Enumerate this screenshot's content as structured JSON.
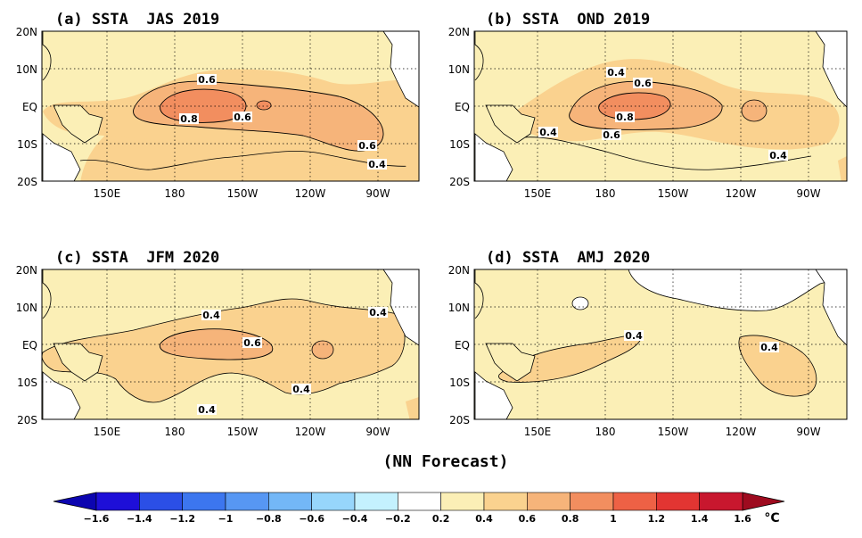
{
  "figure_caption": "(NN Forecast)",
  "colorbar": {
    "unit": "°C",
    "ticks": [
      "-1.6",
      "-1.4",
      "-1.2",
      "-1",
      "-0.8",
      "-0.6",
      "-0.4",
      "-0.2",
      "0.2",
      "0.4",
      "0.6",
      "0.8",
      "1",
      "1.2",
      "1.4",
      "1.6"
    ],
    "colors": [
      "#1e0fd8",
      "#2b4fe6",
      "#3c76ef",
      "#5797f3",
      "#73b7f7",
      "#97d6fb",
      "#c4f1fe",
      "#ffffff",
      "#fbefb6",
      "#fad28f",
      "#f6b47a",
      "#f28e5f",
      "#ee6145",
      "#e23532",
      "#c8172e"
    ],
    "end_low": "#0c05b0",
    "end_high": "#9e0b1f"
  },
  "axes": {
    "lat_labels": [
      "20N",
      "10N",
      "EQ",
      "10S",
      "20S"
    ],
    "lon_labels": [
      "150E",
      "180",
      "150W",
      "120W",
      "90W"
    ]
  },
  "panels": [
    {
      "title": "(a) SSTA  JAS 2019",
      "contour_labels": [
        "0.6",
        "0.8",
        "0.6",
        "0.6",
        "0.4"
      ]
    },
    {
      "title": "(b) SSTA  OND 2019",
      "contour_labels": [
        "0.4",
        "0.6",
        "0.8",
        "0.6",
        "0.4",
        "0.4"
      ]
    },
    {
      "title": "(c) SSTA  JFM 2020",
      "contour_labels": [
        "0.4",
        "0.6",
        "0.4",
        "0.4",
        "0.4"
      ]
    },
    {
      "title": "(d) SSTA  AMJ 2020",
      "contour_labels": [
        "0.4",
        "0.4"
      ]
    }
  ]
}
